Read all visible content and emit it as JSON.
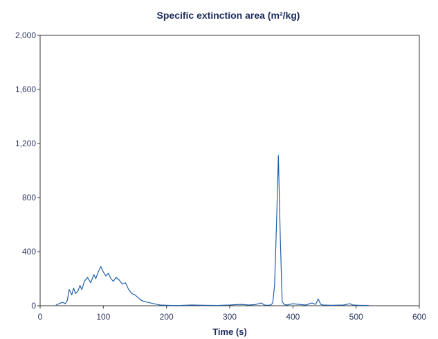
{
  "colors": {
    "series_line": "#1f5fa8",
    "axis": "#333333",
    "text": "#1c2a5c"
  },
  "chart_data": {
    "type": "line",
    "title": "Specific extinction area (m²/kg)",
    "xlabel": "Time (s)",
    "ylabel": "",
    "xlim": [
      0,
      600
    ],
    "ylim": [
      0,
      2000
    ],
    "x_ticks": [
      0,
      100,
      200,
      300,
      400,
      500,
      600
    ],
    "x_tick_labels": [
      "0",
      "100",
      "200",
      "300",
      "400",
      "500",
      "600"
    ],
    "y_ticks": [
      0,
      400,
      800,
      1200,
      1600,
      2000
    ],
    "y_tick_labels": [
      "0",
      "400",
      "800",
      "1,200",
      "1,600",
      "2,000"
    ],
    "grid": false,
    "legend": "none",
    "series": [
      {
        "x": [
          25,
          30,
          35,
          40,
          43,
          46,
          50,
          53,
          56,
          60,
          63,
          66,
          70,
          75,
          80,
          85,
          88,
          92,
          96,
          100,
          104,
          108,
          112,
          116,
          120,
          125,
          130,
          135,
          140,
          145,
          150,
          155,
          160,
          165,
          170,
          175,
          180,
          185,
          190,
          200,
          210,
          220,
          240,
          260,
          280,
          300,
          310,
          320,
          330,
          340,
          350,
          355,
          360,
          365,
          368,
          371,
          374,
          377,
          380,
          383,
          386,
          390,
          400,
          410,
          420,
          430,
          436,
          440,
          444,
          448,
          460,
          480,
          490,
          495,
          505,
          520
        ],
        "y": [
          5,
          15,
          25,
          15,
          40,
          120,
          80,
          130,
          90,
          110,
          150,
          120,
          180,
          210,
          170,
          230,
          200,
          250,
          290,
          250,
          220,
          240,
          200,
          180,
          210,
          190,
          160,
          170,
          120,
          90,
          80,
          60,
          40,
          30,
          25,
          20,
          15,
          10,
          5,
          3,
          2,
          2,
          5,
          3,
          2,
          5,
          8,
          10,
          5,
          8,
          20,
          5,
          3,
          5,
          20,
          150,
          600,
          1110,
          500,
          30,
          10,
          5,
          15,
          10,
          5,
          20,
          10,
          50,
          10,
          5,
          3,
          5,
          15,
          5,
          3,
          2
        ]
      }
    ]
  }
}
